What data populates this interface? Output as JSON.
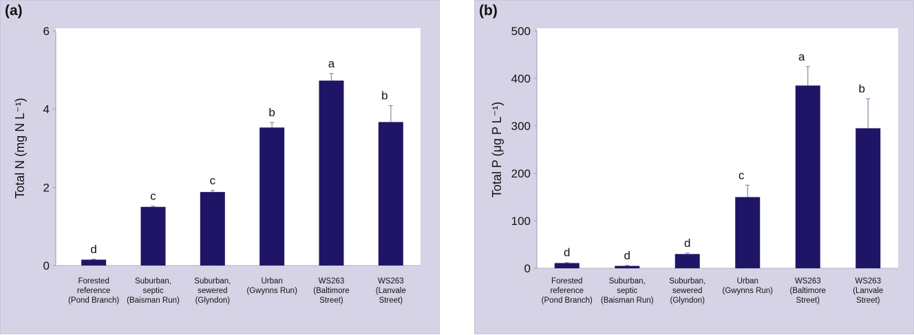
{
  "chart_data": [
    {
      "type": "bar",
      "panel_label": "(a)",
      "ylabel": "Total N (mg N L⁻¹)",
      "ylim": [
        0,
        6
      ],
      "yticks": [
        "0",
        "2",
        "4",
        "6"
      ],
      "categories": [
        [
          "Forested",
          "reference",
          "(Pond Branch)"
        ],
        [
          "Suburban,",
          "septic",
          "(Baisman Run)"
        ],
        [
          "Suburban,",
          "sewered",
          "(Glyndon)"
        ],
        [
          "Urban",
          "(Gwynns Run)"
        ],
        [
          "WS263",
          "(Baltimore",
          "Street)"
        ],
        [
          "WS263",
          "(Lanvale",
          "Street)"
        ]
      ],
      "values": [
        0.15,
        1.5,
        1.88,
        3.53,
        4.73,
        3.67
      ],
      "errors": [
        0.01,
        0.02,
        0.04,
        0.13,
        0.18,
        0.42
      ],
      "letters": [
        "d",
        "c",
        "c",
        "b",
        "a",
        "b"
      ],
      "bar_color": "#1f1566",
      "plot_bg": "#ffffff",
      "grid": false
    },
    {
      "type": "bar",
      "panel_label": "(b)",
      "ylabel": "Total P (μg P L⁻¹)",
      "ylim": [
        0,
        500
      ],
      "yticks": [
        "0",
        "100",
        "200",
        "300",
        "400",
        "500"
      ],
      "categories": [
        [
          "Forested",
          "reference",
          "(Pond Branch)"
        ],
        [
          "Suburban,",
          "septic",
          "(Baisman Run)"
        ],
        [
          "Suburban,",
          "sewered",
          "(Glyndon)"
        ],
        [
          "Urban",
          "(Gwynns Run)"
        ],
        [
          "WS263",
          "(Baltimore",
          "Street)"
        ],
        [
          "WS263",
          "(Lanvale",
          "Street)"
        ]
      ],
      "values": [
        11,
        5,
        30,
        150,
        385,
        295
      ],
      "errors": [
        1,
        1,
        2,
        25,
        40,
        62
      ],
      "letters": [
        "d",
        "d",
        "d",
        "c",
        "a",
        "b"
      ],
      "bar_color": "#1f1566",
      "plot_bg": "#ffffff",
      "grid": false
    }
  ]
}
